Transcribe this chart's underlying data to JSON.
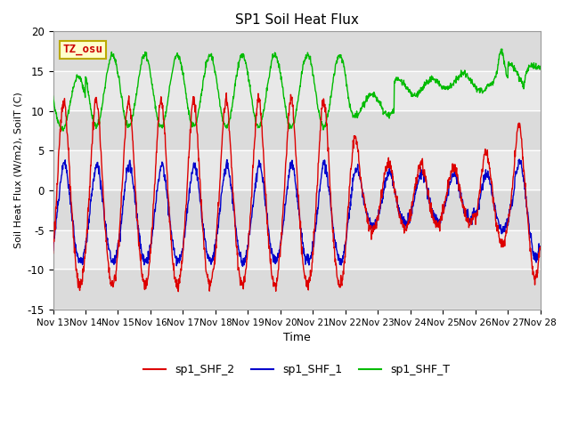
{
  "title": "SP1 Soil Heat Flux",
  "xlabel": "Time",
  "ylabel": "Soil Heat Flux (W/m2), SoilT (C)",
  "ylim": [
    -15,
    20
  ],
  "xlim": [
    0,
    15
  ],
  "tz_label": "TZ_osu",
  "bg_color": "#ffffff",
  "plot_bg_color": "#e8e8e8",
  "grid_color": "#ffffff",
  "xtick_labels": [
    "Nov 13",
    "Nov 14",
    "Nov 15",
    "Nov 16",
    "Nov 17",
    "Nov 18",
    "Nov 19",
    "Nov 20",
    "Nov 21",
    "Nov 22",
    "Nov 23",
    "Nov 24",
    "Nov 25",
    "Nov 26",
    "Nov 27",
    "Nov 28"
  ],
  "ytick_values": [
    -15,
    -10,
    -5,
    0,
    5,
    10,
    15,
    20
  ],
  "legend_items": [
    "sp1_SHF_2",
    "sp1_SHF_1",
    "sp1_SHF_T"
  ],
  "legend_colors": [
    "#dd0000",
    "#0000cc",
    "#00bb00"
  ],
  "shf2_color": "#dd0000",
  "shf1_color": "#0000cc",
  "shft_color": "#00bb00"
}
